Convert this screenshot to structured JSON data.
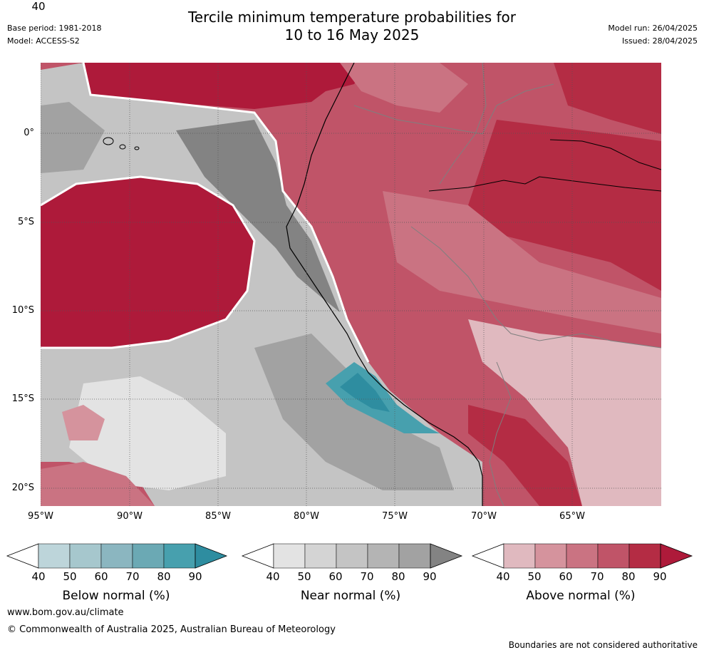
{
  "header": {
    "title_line1": "Tercile minimum temperature probabilities for",
    "title_line2": "10 to 16 May 2025",
    "base_period": "Base period: 1981-2018",
    "model": "Model: ACCESS-S2",
    "model_run": "Model run: 26/04/2025",
    "issued": "Issued: 28/04/2025"
  },
  "map": {
    "lon_range": [
      -95,
      -60
    ],
    "lat_range": [
      -21,
      4
    ],
    "lat_labels": [
      "0°",
      "5°S",
      "10°S",
      "15°S",
      "20°S"
    ],
    "lon_labels": [
      "95°W",
      "90°W",
      "85°W",
      "80°W",
      "75°W",
      "70°W",
      "65°W"
    ],
    "dominant_category_by_region": {
      "northwest_pacific": "Above normal",
      "central_west_pacific": "Above normal",
      "near_galapagos": "Near normal",
      "peru_coastal_ocean": "Near normal",
      "south_peru_coast": "Below normal",
      "amazon_interior": "Above normal",
      "bolivia_altiplano": "Above normal"
    }
  },
  "colorbars": [
    {
      "title": "Below normal (%)",
      "ticks": [
        "40",
        "50",
        "60",
        "70",
        "80",
        "90"
      ],
      "colors": [
        "#ffffff",
        "#bdd5da",
        "#a6c7cd",
        "#8bb6c0",
        "#6ba9b4",
        "#47a0ae",
        "#2e8da0"
      ]
    },
    {
      "title": "Near normal (%)",
      "ticks": [
        "40",
        "50",
        "60",
        "70",
        "80",
        "90"
      ],
      "colors": [
        "#ffffff",
        "#e3e3e3",
        "#d4d4d4",
        "#c4c4c4",
        "#b4b4b4",
        "#a2a2a2",
        "#838383"
      ]
    },
    {
      "title": "Above normal (%)",
      "ticks": [
        "40",
        "50",
        "60",
        "70",
        "80",
        "90"
      ],
      "colors": [
        "#ffffff",
        "#e0b9bf",
        "#d5939d",
        "#ca7382",
        "#c05468",
        "#b42c44",
        "#ae1a3a"
      ]
    }
  ],
  "footer": {
    "website": "www.bom.gov.au/climate",
    "copyright": "© Commonwealth of Australia 2025, Australian Bureau of Meteorology",
    "disclaimer": "Boundaries are not considered authoritative"
  }
}
